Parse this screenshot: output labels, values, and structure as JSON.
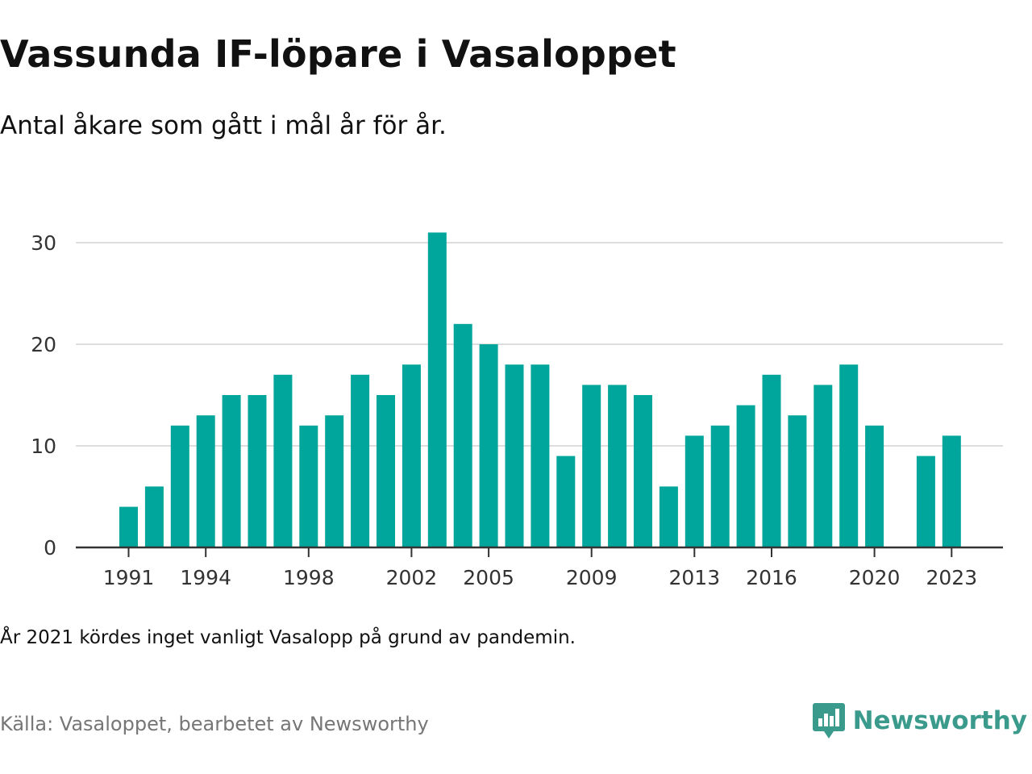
{
  "title": "Vassunda IF-löpare i Vasaloppet",
  "subtitle": "Antal åkare som gått i mål år för år.",
  "note": "År 2021 kördes inget vanligt Vasalopp på grund av pandemin.",
  "source": "Källa: Vasaloppet, bearbetet av Newsworthy",
  "brand": {
    "name": "Newsworthy",
    "icon": "newsworthy-logo-icon",
    "color": "#3a9a8c"
  },
  "chart_data": {
    "type": "bar",
    "title": "",
    "xlabel": "",
    "ylabel": "",
    "bar_color": "#00a59b",
    "ylim": [
      0,
      31
    ],
    "yticks": [
      0,
      10,
      20,
      30
    ],
    "xtick_labels": [
      1991,
      1994,
      1998,
      2002,
      2005,
      2009,
      2013,
      2016,
      2020,
      2023
    ],
    "grid": true,
    "categories": [
      1991,
      1992,
      1993,
      1994,
      1995,
      1996,
      1997,
      1998,
      1999,
      2000,
      2001,
      2002,
      2003,
      2004,
      2005,
      2006,
      2007,
      2008,
      2009,
      2010,
      2011,
      2012,
      2013,
      2014,
      2015,
      2016,
      2017,
      2018,
      2019,
      2020,
      2021,
      2022,
      2023
    ],
    "values": [
      4,
      6,
      12,
      13,
      15,
      15,
      17,
      12,
      13,
      17,
      15,
      18,
      31,
      22,
      20,
      18,
      18,
      9,
      16,
      16,
      15,
      6,
      11,
      12,
      14,
      17,
      13,
      16,
      18,
      12,
      null,
      9,
      11
    ]
  }
}
